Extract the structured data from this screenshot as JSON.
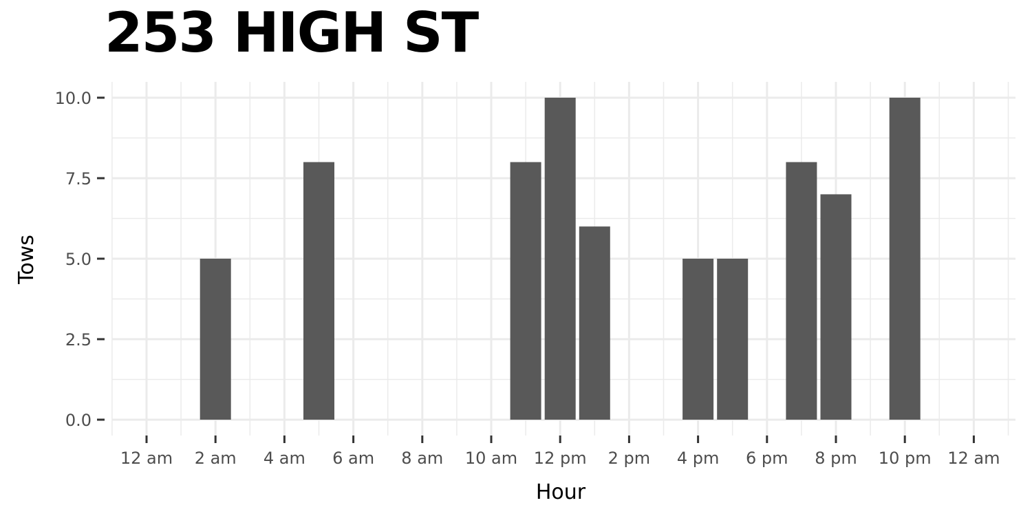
{
  "chart_data": {
    "type": "bar",
    "title": "253 HIGH ST",
    "xlabel": "Hour",
    "ylabel": "Tows",
    "ylim": [
      0,
      10
    ],
    "xlim": [
      -0.5,
      25.5
    ],
    "x_ticks": [
      0,
      2,
      4,
      6,
      8,
      10,
      12,
      14,
      16,
      18,
      20,
      22,
      24
    ],
    "x_tick_labels": [
      "12 am",
      "2 am",
      "4 am",
      "6 am",
      "8 am",
      "10 am",
      "12 pm",
      "2 pm",
      "4 pm",
      "6 pm",
      "8 pm",
      "10 pm",
      "12 am"
    ],
    "y_ticks": [
      0,
      2.5,
      5,
      7.5,
      10
    ],
    "y_tick_labels": [
      "0.0",
      "2.5",
      "5.0",
      "7.5",
      "10.0"
    ],
    "grid": true,
    "bar_color": "#595959",
    "grid_color": "#ebebeb",
    "data": [
      {
        "hour": 2,
        "value": 5
      },
      {
        "hour": 5,
        "value": 8
      },
      {
        "hour": 11,
        "value": 8
      },
      {
        "hour": 12,
        "value": 10
      },
      {
        "hour": 13,
        "value": 6
      },
      {
        "hour": 16,
        "value": 5
      },
      {
        "hour": 17,
        "value": 5
      },
      {
        "hour": 19,
        "value": 8
      },
      {
        "hour": 20,
        "value": 7
      },
      {
        "hour": 22,
        "value": 10
      }
    ]
  }
}
